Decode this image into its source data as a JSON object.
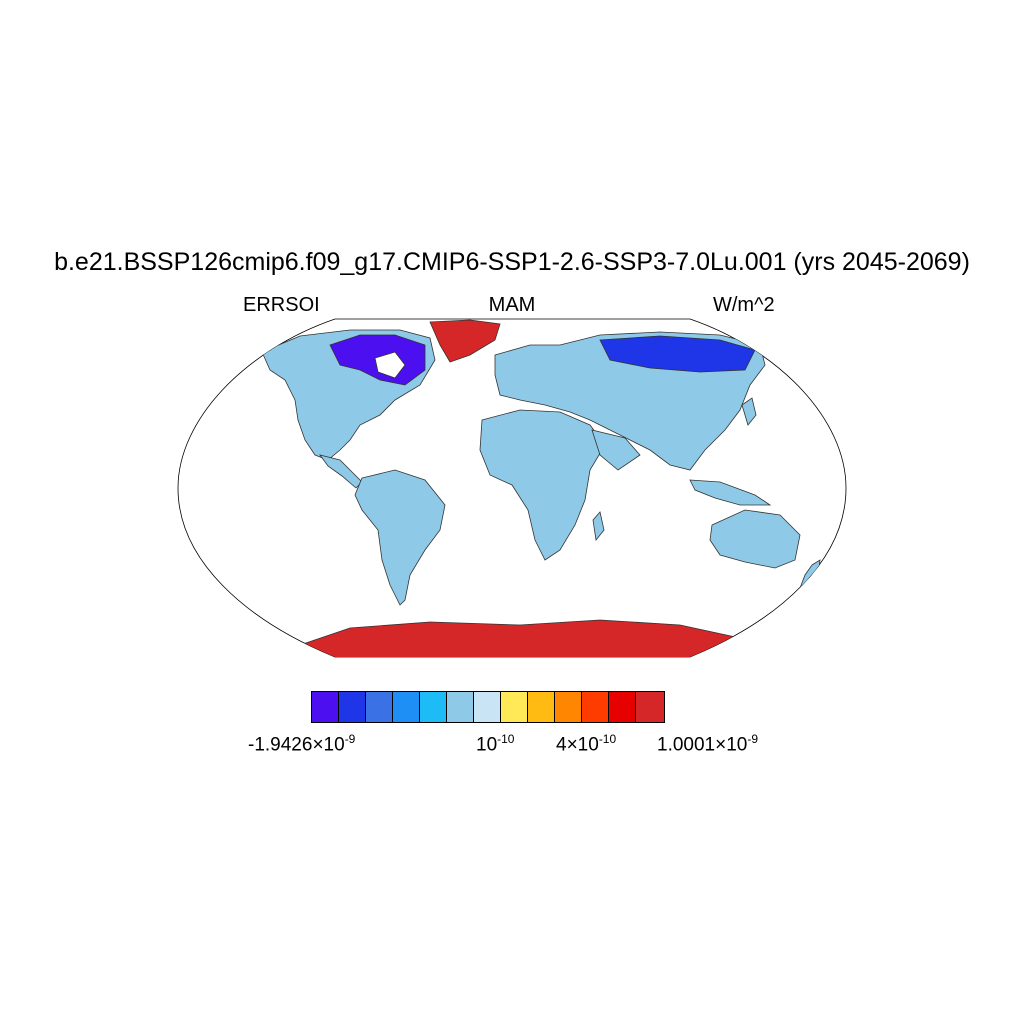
{
  "title": "b.e21.BSSP126cmip6.f09_g17.CMIP6-SSP1-2.6-SSP3-7.0Lu.001 (yrs 2045-2069)",
  "variable": "ERRSOI",
  "season": "MAM",
  "units": "W/m^2",
  "colorbar": {
    "colors": [
      "#4b0ff0",
      "#1e35e8",
      "#3a72e6",
      "#1e90f5",
      "#1ebcf7",
      "#8ecae8",
      "#c8e4f5",
      "#ffe957",
      "#ffbb11",
      "#ff8600",
      "#ff3c00",
      "#e60000",
      "#d62728"
    ],
    "labels": [
      {
        "mantissa": "-1.9426×",
        "base": "10",
        "exp": "-9"
      },
      {
        "mantissa": "",
        "base": "10",
        "exp": "-10"
      },
      {
        "mantissa": "4×",
        "base": "10",
        "exp": "-10"
      },
      {
        "mantissa": "1.0001×",
        "base": "10",
        "exp": "-9"
      }
    ]
  },
  "map_colors": {
    "ocean": "#ffffff",
    "land_default": "#8ecae8",
    "antarctica": "#d62728",
    "greenland": "#d62728",
    "coast": "#333333"
  }
}
